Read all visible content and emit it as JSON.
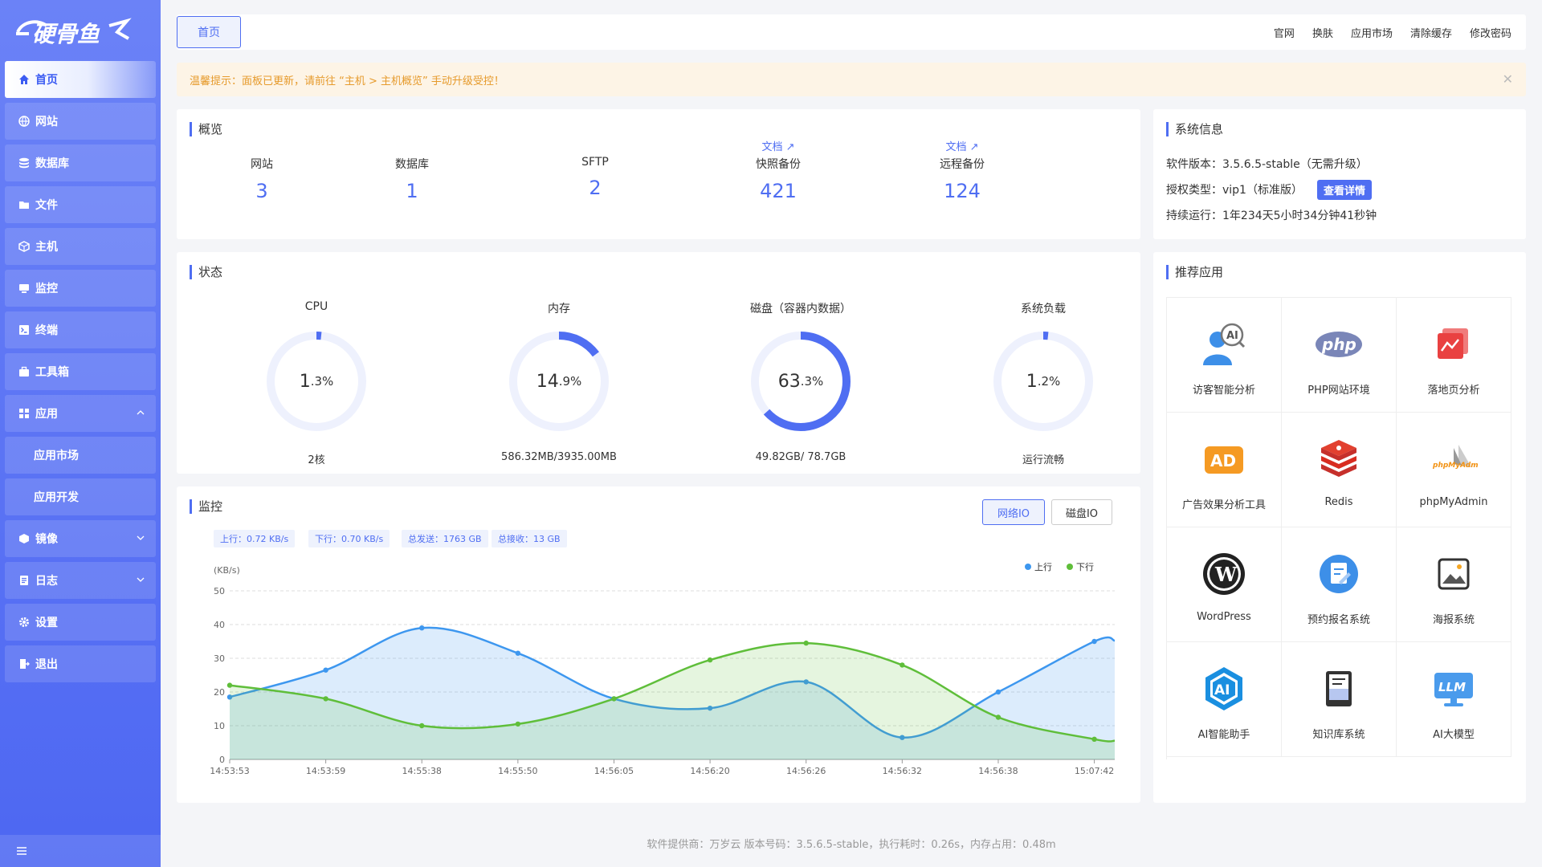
{
  "sidebar": {
    "logo_text": "硬骨鱼",
    "items": [
      {
        "label": "首页",
        "icon": "home-icon"
      },
      {
        "label": "网站",
        "icon": "globe-icon"
      },
      {
        "label": "数据库",
        "icon": "database-icon"
      },
      {
        "label": "文件",
        "icon": "folder-icon"
      },
      {
        "label": "主机",
        "icon": "cube-icon"
      },
      {
        "label": "监控",
        "icon": "monitor-icon"
      },
      {
        "label": "终端",
        "icon": "terminal-icon"
      },
      {
        "label": "工具箱",
        "icon": "toolbox-icon"
      },
      {
        "label": "应用",
        "icon": "grid-icon"
      },
      {
        "label": "应用市场"
      },
      {
        "label": "应用开发"
      },
      {
        "label": "镜像",
        "icon": "box-icon"
      },
      {
        "label": "日志",
        "icon": "log-icon"
      },
      {
        "label": "设置",
        "icon": "gear-icon"
      },
      {
        "label": "退出",
        "icon": "logout-icon"
      }
    ]
  },
  "topbar": {
    "tab": "首页",
    "links": [
      "官网",
      "换肤",
      "应用市场",
      "清除缓存",
      "修改密码"
    ]
  },
  "notice": {
    "text": "温馨提示：面板已更新，请前往 “主机 > 主机概览” 手动升级受控！"
  },
  "overview": {
    "title": "概览",
    "doc_label": "文档",
    "items": [
      {
        "label": "网站",
        "value": "3"
      },
      {
        "label": "数据库",
        "value": "1"
      },
      {
        "label": "SFTP",
        "value": "2"
      },
      {
        "label": "快照备份",
        "value": "421"
      },
      {
        "label": "远程备份",
        "value": "124"
      }
    ]
  },
  "system": {
    "title": "系统信息",
    "version": "软件版本：3.5.6.5-stable（无需升级）",
    "license": "授权类型：vip1（标准版）",
    "detail_button": "查看详情",
    "uptime": "持续运行：1年234天5小时34分钟41秒钟"
  },
  "status": {
    "title": "状态",
    "gauges": [
      {
        "title": "CPU",
        "int": "1",
        "dec": ".3",
        "unit": "%",
        "percent": 1.3,
        "sub": "2核"
      },
      {
        "title": "内存",
        "int": "14",
        "dec": ".9",
        "unit": "%",
        "percent": 14.9,
        "sub": "586.32MB/3935.00MB"
      },
      {
        "title": "磁盘（容器内数据）",
        "int": "63",
        "dec": ".3",
        "unit": " %",
        "percent": 63.3,
        "sub": "49.82GB/ 78.7GB"
      },
      {
        "title": "系统负载",
        "int": "1",
        "dec": ".2",
        "unit": "%",
        "percent": 1.2,
        "sub": "运行流畅"
      }
    ],
    "colors": {
      "track": "#eef1fd",
      "fill": "#4f6ef2"
    }
  },
  "apps": {
    "title": "推荐应用",
    "items": [
      {
        "label": "访客智能分析",
        "icon": "visitor-ai-icon"
      },
      {
        "label": "PHP网站环境",
        "icon": "php-icon"
      },
      {
        "label": "落地页分析",
        "icon": "landing-chart-icon"
      },
      {
        "label": "广告效果分析工具",
        "icon": "ad-icon"
      },
      {
        "label": "Redis",
        "icon": "redis-icon"
      },
      {
        "label": "phpMyAdmin",
        "icon": "phpmyadmin-icon"
      },
      {
        "label": "WordPress",
        "icon": "wordpress-icon"
      },
      {
        "label": "预约报名系统",
        "icon": "booking-icon"
      },
      {
        "label": "海报系统",
        "icon": "poster-icon"
      },
      {
        "label": "AI智能助手",
        "icon": "ai-assistant-icon"
      },
      {
        "label": "知识库系统",
        "icon": "book-icon"
      },
      {
        "label": "AI大模型",
        "icon": "llm-icon"
      }
    ]
  },
  "monitor": {
    "title": "监控",
    "tabs": [
      "网络IO",
      "磁盘IO"
    ],
    "stats": [
      "上行：0.72 KB/s",
      "下行：0.70 KB/s",
      "总发送：1763 GB",
      "总接收：13 GB"
    ]
  },
  "chart_data": {
    "type": "line",
    "ylabel": "(KB/s)",
    "ylim": [
      0,
      50
    ],
    "yticks": [
      0,
      10,
      20,
      30,
      40,
      50
    ],
    "categories": [
      "14:53:53",
      "14:53:59",
      "14:55:38",
      "14:55:50",
      "14:56:05",
      "14:56:20",
      "14:56:26",
      "14:56:32",
      "14:56:38",
      "15:07:42"
    ],
    "series": [
      {
        "name": "上行",
        "color": "#3d97ef",
        "values": [
          18.5,
          26.5,
          39,
          31.5,
          18,
          15.2,
          23,
          6.5,
          20,
          35
        ]
      },
      {
        "name": "下行",
        "color": "#5fbe3a",
        "values": [
          22,
          18,
          10,
          10.5,
          18,
          29.5,
          34.5,
          28,
          12.5,
          6
        ]
      }
    ],
    "grid": true,
    "legend": "top-right"
  },
  "footer": {
    "text": "软件提供商：万岁云   版本号码：3.5.6.5-stable，执行耗时：0.26s，内存占用：0.48m"
  }
}
